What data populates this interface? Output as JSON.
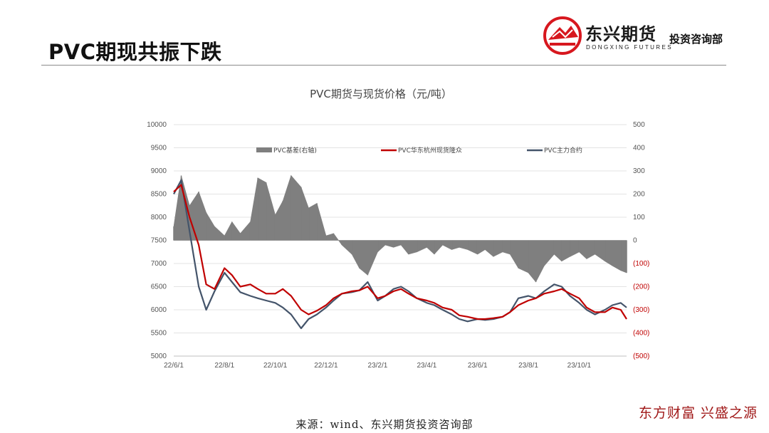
{
  "slide": {
    "title": "PVC期现共振下跌"
  },
  "logo": {
    "name": "东兴期货",
    "english": "DONGXING FUTURES",
    "subtitle": "投资咨询部",
    "brand_color": "#d7171e"
  },
  "source": "来源：wind、东兴期货投资咨询部",
  "slogan": "东方财富 兴盛之源",
  "colors": {
    "basis": "#7f7f7f",
    "spot": "#c00000",
    "futures": "#44546a",
    "negative_tick": "#c00000"
  },
  "chart_data": {
    "type": "line",
    "title": "PVC期货与现货价格（元/吨）",
    "legend_position": "top",
    "grid": true,
    "x_ticks": [
      "22/6/1",
      "22/8/1",
      "22/10/1",
      "22/12/1",
      "23/2/1",
      "23/4/1",
      "23/6/1",
      "23/8/1",
      "23/10/1"
    ],
    "y_left": {
      "range": [
        5000,
        10000
      ],
      "ticks": [
        "10000",
        "9500",
        "9000",
        "8500",
        "8000",
        "7500",
        "7000",
        "6500",
        "6000",
        "5500",
        "5000"
      ]
    },
    "y_right": {
      "range": [
        -500,
        500
      ],
      "ticks": [
        "500",
        "400",
        "300",
        "200",
        "100",
        "0",
        "(100)",
        "(200)",
        "(300)",
        "(400)",
        "(500)"
      ]
    },
    "x": [
      "2022-06-01",
      "2022-06-10",
      "2022-06-20",
      "2022-07-01",
      "2022-07-10",
      "2022-07-20",
      "2022-08-01",
      "2022-08-10",
      "2022-08-20",
      "2022-09-01",
      "2022-09-10",
      "2022-09-20",
      "2022-10-01",
      "2022-10-10",
      "2022-10-20",
      "2022-11-01",
      "2022-11-10",
      "2022-11-20",
      "2022-12-01",
      "2022-12-10",
      "2022-12-20",
      "2023-01-01",
      "2023-01-10",
      "2023-01-20",
      "2023-02-01",
      "2023-02-10",
      "2023-02-20",
      "2023-03-01",
      "2023-03-10",
      "2023-03-20",
      "2023-04-01",
      "2023-04-10",
      "2023-04-20",
      "2023-05-01",
      "2023-05-10",
      "2023-05-20",
      "2023-06-01",
      "2023-06-10",
      "2023-06-20",
      "2023-07-01",
      "2023-07-10",
      "2023-07-20",
      "2023-08-01",
      "2023-08-10",
      "2023-08-20",
      "2023-09-01",
      "2023-09-10",
      "2023-09-20",
      "2023-10-01",
      "2023-10-10",
      "2023-10-20",
      "2023-11-01",
      "2023-11-10",
      "2023-11-20",
      "2023-11-27"
    ],
    "series": [
      {
        "name": "PVC基差(右轴)",
        "type": "area",
        "axis": "right",
        "values": [
          60,
          280,
          150,
          210,
          120,
          60,
          20,
          80,
          30,
          80,
          270,
          250,
          110,
          170,
          280,
          230,
          140,
          160,
          20,
          30,
          -20,
          -60,
          -120,
          -150,
          -50,
          -20,
          -30,
          -20,
          -60,
          -50,
          -30,
          -60,
          -20,
          -40,
          -30,
          -40,
          -60,
          -40,
          -70,
          -50,
          -60,
          -120,
          -140,
          -180,
          -110,
          -60,
          -90,
          -70,
          -50,
          -80,
          -60,
          -90,
          -110,
          -130,
          -140
        ]
      },
      {
        "name": "PVC华东杭州现货隆众",
        "type": "line",
        "axis": "left",
        "values": [
          8550,
          8700,
          8000,
          7400,
          6550,
          6450,
          6900,
          6750,
          6500,
          6550,
          6450,
          6350,
          6350,
          6450,
          6300,
          6000,
          5900,
          5980,
          6100,
          6250,
          6350,
          6400,
          6420,
          6500,
          6250,
          6300,
          6400,
          6450,
          6350,
          6250,
          6200,
          6150,
          6050,
          6000,
          5880,
          5850,
          5800,
          5800,
          5820,
          5850,
          5950,
          6100,
          6200,
          6250,
          6350,
          6400,
          6450,
          6350,
          6250,
          6050,
          5950,
          5950,
          6050,
          6000,
          5800
        ]
      },
      {
        "name": "PVC主力合约",
        "type": "line",
        "axis": "left",
        "values": [
          8500,
          8800,
          7700,
          6500,
          6000,
          6400,
          6800,
          6600,
          6380,
          6300,
          6250,
          6200,
          6150,
          6050,
          5900,
          5600,
          5800,
          5900,
          6050,
          6200,
          6350,
          6380,
          6420,
          6600,
          6200,
          6300,
          6450,
          6500,
          6400,
          6250,
          6150,
          6100,
          6000,
          5900,
          5800,
          5750,
          5800,
          5780,
          5800,
          5850,
          5950,
          6250,
          6300,
          6250,
          6400,
          6550,
          6500,
          6300,
          6150,
          6000,
          5900,
          6000,
          6100,
          6150,
          6050
        ]
      }
    ]
  }
}
